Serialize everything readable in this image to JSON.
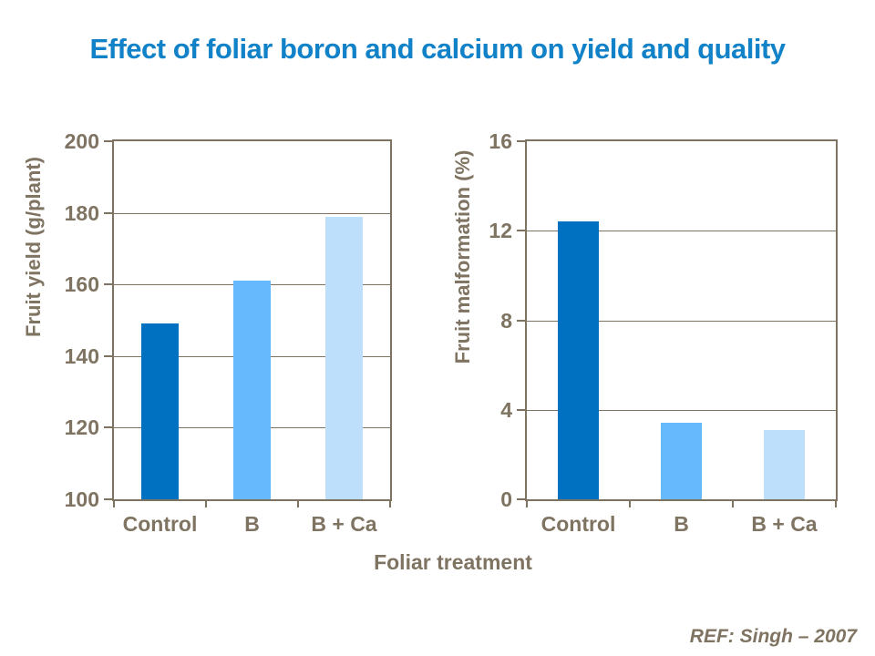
{
  "title": "Effect of foliar boron and calcium on yield and quality",
  "xlabel": "Foliar treatment",
  "reference": "REF:  Singh – 2007",
  "colors": {
    "title": "#1182C8",
    "axis_text": "#7F7361",
    "axis_line": "#7E7260",
    "bar_control": "#0070C0",
    "bar_b": "#66B9FC",
    "bar_b_ca": "#BDDFFB"
  },
  "chart_data": [
    {
      "type": "bar",
      "title": "",
      "categories": [
        "Control",
        "B",
        "B + Ca"
      ],
      "values": [
        149,
        161,
        179
      ],
      "xlabel": "Foliar treatment",
      "ylabel": "Fruit yield (g/plant)",
      "ylim": [
        100,
        200
      ],
      "yticks": [
        100,
        120,
        140,
        160,
        180,
        200
      ],
      "grid": true,
      "legend": false,
      "bar_colors": [
        "#0070C0",
        "#66B9FC",
        "#BDDFFB"
      ]
    },
    {
      "type": "bar",
      "title": "",
      "categories": [
        "Control",
        "B",
        "B + Ca"
      ],
      "values": [
        12.4,
        3.4,
        3.1
      ],
      "xlabel": "Foliar treatment",
      "ylabel": "Fruit malformation (%)",
      "ylim": [
        0,
        16
      ],
      "yticks": [
        0,
        4,
        8,
        12,
        16
      ],
      "grid": true,
      "legend": false,
      "bar_colors": [
        "#0070C0",
        "#66B9FC",
        "#BDDFFB"
      ]
    }
  ]
}
